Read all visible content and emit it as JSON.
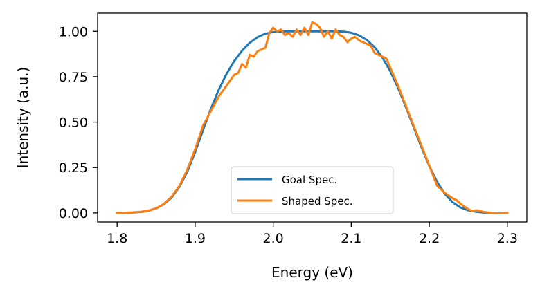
{
  "chart_data": {
    "type": "line",
    "xlabel": "Energy (eV)",
    "ylabel": "Intensity (a.u.)",
    "xlim": [
      1.775,
      2.325
    ],
    "ylim": [
      -0.05,
      1.1
    ],
    "xticks": [
      1.8,
      1.9,
      2.0,
      2.1,
      2.2,
      2.3
    ],
    "xtick_labels": [
      "1.8",
      "1.9",
      "2.0",
      "2.1",
      "2.2",
      "2.3"
    ],
    "yticks": [
      0.0,
      0.25,
      0.5,
      0.75,
      1.0
    ],
    "ytick_labels": [
      "0.00",
      "0.25",
      "0.50",
      "0.75",
      "1.00"
    ],
    "grid": false,
    "legend_position": "lower-center",
    "series": [
      {
        "name": "Goal Spec.",
        "color": "#1f77b4",
        "x": [
          1.8,
          1.81,
          1.82,
          1.83,
          1.84,
          1.85,
          1.86,
          1.87,
          1.88,
          1.89,
          1.9,
          1.91,
          1.92,
          1.93,
          1.94,
          1.95,
          1.96,
          1.97,
          1.98,
          1.99,
          2.0,
          2.01,
          2.02,
          2.03,
          2.04,
          2.05,
          2.06,
          2.07,
          2.08,
          2.09,
          2.1,
          2.11,
          2.12,
          2.13,
          2.14,
          2.15,
          2.16,
          2.17,
          2.18,
          2.19,
          2.2,
          2.21,
          2.22,
          2.23,
          2.24,
          2.25,
          2.26,
          2.27,
          2.28,
          2.29,
          2.3
        ],
        "y": [
          0.0,
          0.001,
          0.002,
          0.005,
          0.012,
          0.025,
          0.048,
          0.085,
          0.145,
          0.228,
          0.335,
          0.455,
          0.572,
          0.676,
          0.764,
          0.836,
          0.893,
          0.937,
          0.968,
          0.987,
          0.996,
          0.999,
          1.0,
          1.0,
          1.0,
          1.0,
          1.0,
          1.0,
          1.0,
          0.998,
          0.992,
          0.978,
          0.952,
          0.912,
          0.855,
          0.78,
          0.688,
          0.583,
          0.472,
          0.361,
          0.258,
          0.171,
          0.104,
          0.058,
          0.03,
          0.014,
          0.006,
          0.002,
          0.001,
          0.0,
          0.0
        ]
      },
      {
        "name": "Shaped Spec.",
        "color": "#ff7f0e",
        "x": [
          1.8,
          1.81,
          1.82,
          1.83,
          1.84,
          1.85,
          1.86,
          1.87,
          1.88,
          1.89,
          1.9,
          1.91,
          1.92,
          1.93,
          1.94,
          1.95,
          1.955,
          1.96,
          1.965,
          1.97,
          1.975,
          1.98,
          1.985,
          1.99,
          1.995,
          2.0,
          2.005,
          2.01,
          2.015,
          2.02,
          2.025,
          2.03,
          2.035,
          2.04,
          2.045,
          2.05,
          2.055,
          2.06,
          2.065,
          2.07,
          2.075,
          2.08,
          2.085,
          2.09,
          2.095,
          2.1,
          2.105,
          2.11,
          2.115,
          2.12,
          2.125,
          2.13,
          2.135,
          2.14,
          2.145,
          2.15,
          2.16,
          2.17,
          2.18,
          2.19,
          2.2,
          2.21,
          2.22,
          2.23,
          2.235,
          2.24,
          2.25,
          2.255,
          2.26,
          2.27,
          2.28,
          2.29,
          2.3
        ],
        "y": [
          0.0,
          0.0,
          0.003,
          0.006,
          0.012,
          0.025,
          0.05,
          0.09,
          0.15,
          0.24,
          0.35,
          0.48,
          0.56,
          0.64,
          0.7,
          0.76,
          0.77,
          0.82,
          0.8,
          0.87,
          0.86,
          0.89,
          0.9,
          0.91,
          0.99,
          1.02,
          1.0,
          1.01,
          0.98,
          0.99,
          0.97,
          1.01,
          0.98,
          1.02,
          0.98,
          1.05,
          1.04,
          1.02,
          0.97,
          1.0,
          0.96,
          1.01,
          0.98,
          0.97,
          0.94,
          0.96,
          0.97,
          0.95,
          0.94,
          0.93,
          0.92,
          0.88,
          0.87,
          0.86,
          0.85,
          0.8,
          0.7,
          0.59,
          0.48,
          0.37,
          0.26,
          0.15,
          0.11,
          0.08,
          0.07,
          0.05,
          0.02,
          0.01,
          0.015,
          0.005,
          0.0,
          -0.002,
          0.0
        ]
      }
    ]
  }
}
